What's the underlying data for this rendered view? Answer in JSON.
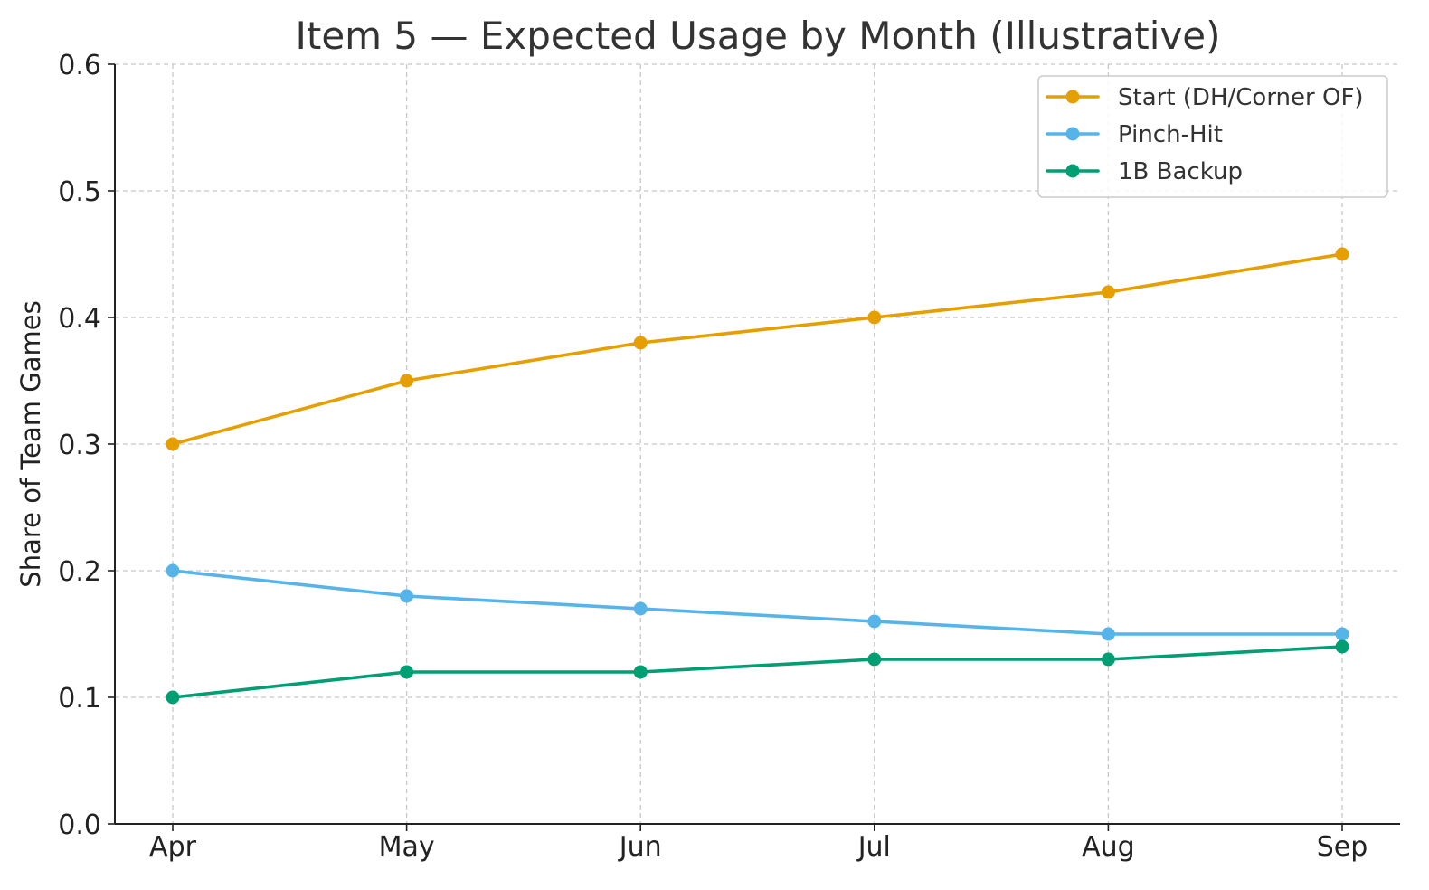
{
  "chart_data": {
    "type": "line",
    "title": "Item 5 — Expected Usage by Month (Illustrative)",
    "xlabel": "",
    "ylabel": "Share of Team Games",
    "categories": [
      "Apr",
      "May",
      "Jun",
      "Jul",
      "Aug",
      "Sep"
    ],
    "ylim": [
      0.0,
      0.6
    ],
    "yticks": [
      0.0,
      0.1,
      0.2,
      0.3,
      0.4,
      0.5,
      0.6
    ],
    "ytick_labels": [
      "0.0",
      "0.1",
      "0.2",
      "0.3",
      "0.4",
      "0.5",
      "0.6"
    ],
    "grid": true,
    "legend_position": "top-right",
    "series": [
      {
        "name": "Start (DH/Corner OF)",
        "color": "#E69F00",
        "values": [
          0.3,
          0.35,
          0.38,
          0.4,
          0.42,
          0.45
        ]
      },
      {
        "name": "Pinch-Hit",
        "color": "#56B4E9",
        "values": [
          0.2,
          0.18,
          0.17,
          0.16,
          0.15,
          0.15
        ]
      },
      {
        "name": "1B Backup",
        "color": "#009E73",
        "values": [
          0.1,
          0.12,
          0.12,
          0.13,
          0.13,
          0.14
        ]
      }
    ]
  }
}
